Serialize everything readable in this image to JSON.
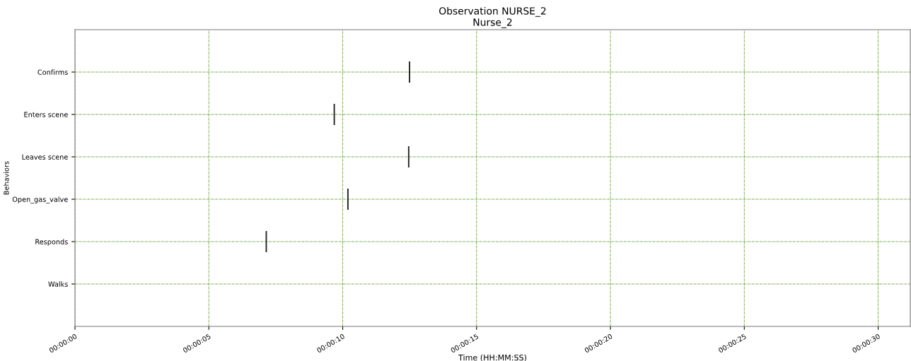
{
  "chart_data": {
    "type": "bar",
    "orientation": "horizontal",
    "title": "Observation NURSE_2",
    "subtitle": "Nurse_2",
    "xlabel": "Time (HH:MM:SS)",
    "ylabel": "Behaviors",
    "categories": [
      "Confirms",
      "Enters scene",
      "Leaves scene",
      "Open_gas_valve",
      "Responds",
      "Walks"
    ],
    "series": [
      {
        "color": "#222222",
        "values": [
          0.05,
          0.05,
          0.05,
          0.05,
          0.05,
          null
        ],
        "base": [
          12.47,
          9.66,
          12.44,
          10.17,
          7.12,
          null
        ]
      }
    ],
    "xlim": [
      0,
      31.2
    ],
    "xticks": [
      {
        "value": 0,
        "label": "00:00:00"
      },
      {
        "value": 5,
        "label": "00:00:05"
      },
      {
        "value": 10,
        "label": "00:00:10"
      },
      {
        "value": 15,
        "label": "00:00:15"
      },
      {
        "value": 20,
        "label": "00:00:20"
      },
      {
        "value": 25,
        "label": "00:00:25"
      },
      {
        "value": 30,
        "label": "00:00:30"
      }
    ],
    "grid": true
  }
}
